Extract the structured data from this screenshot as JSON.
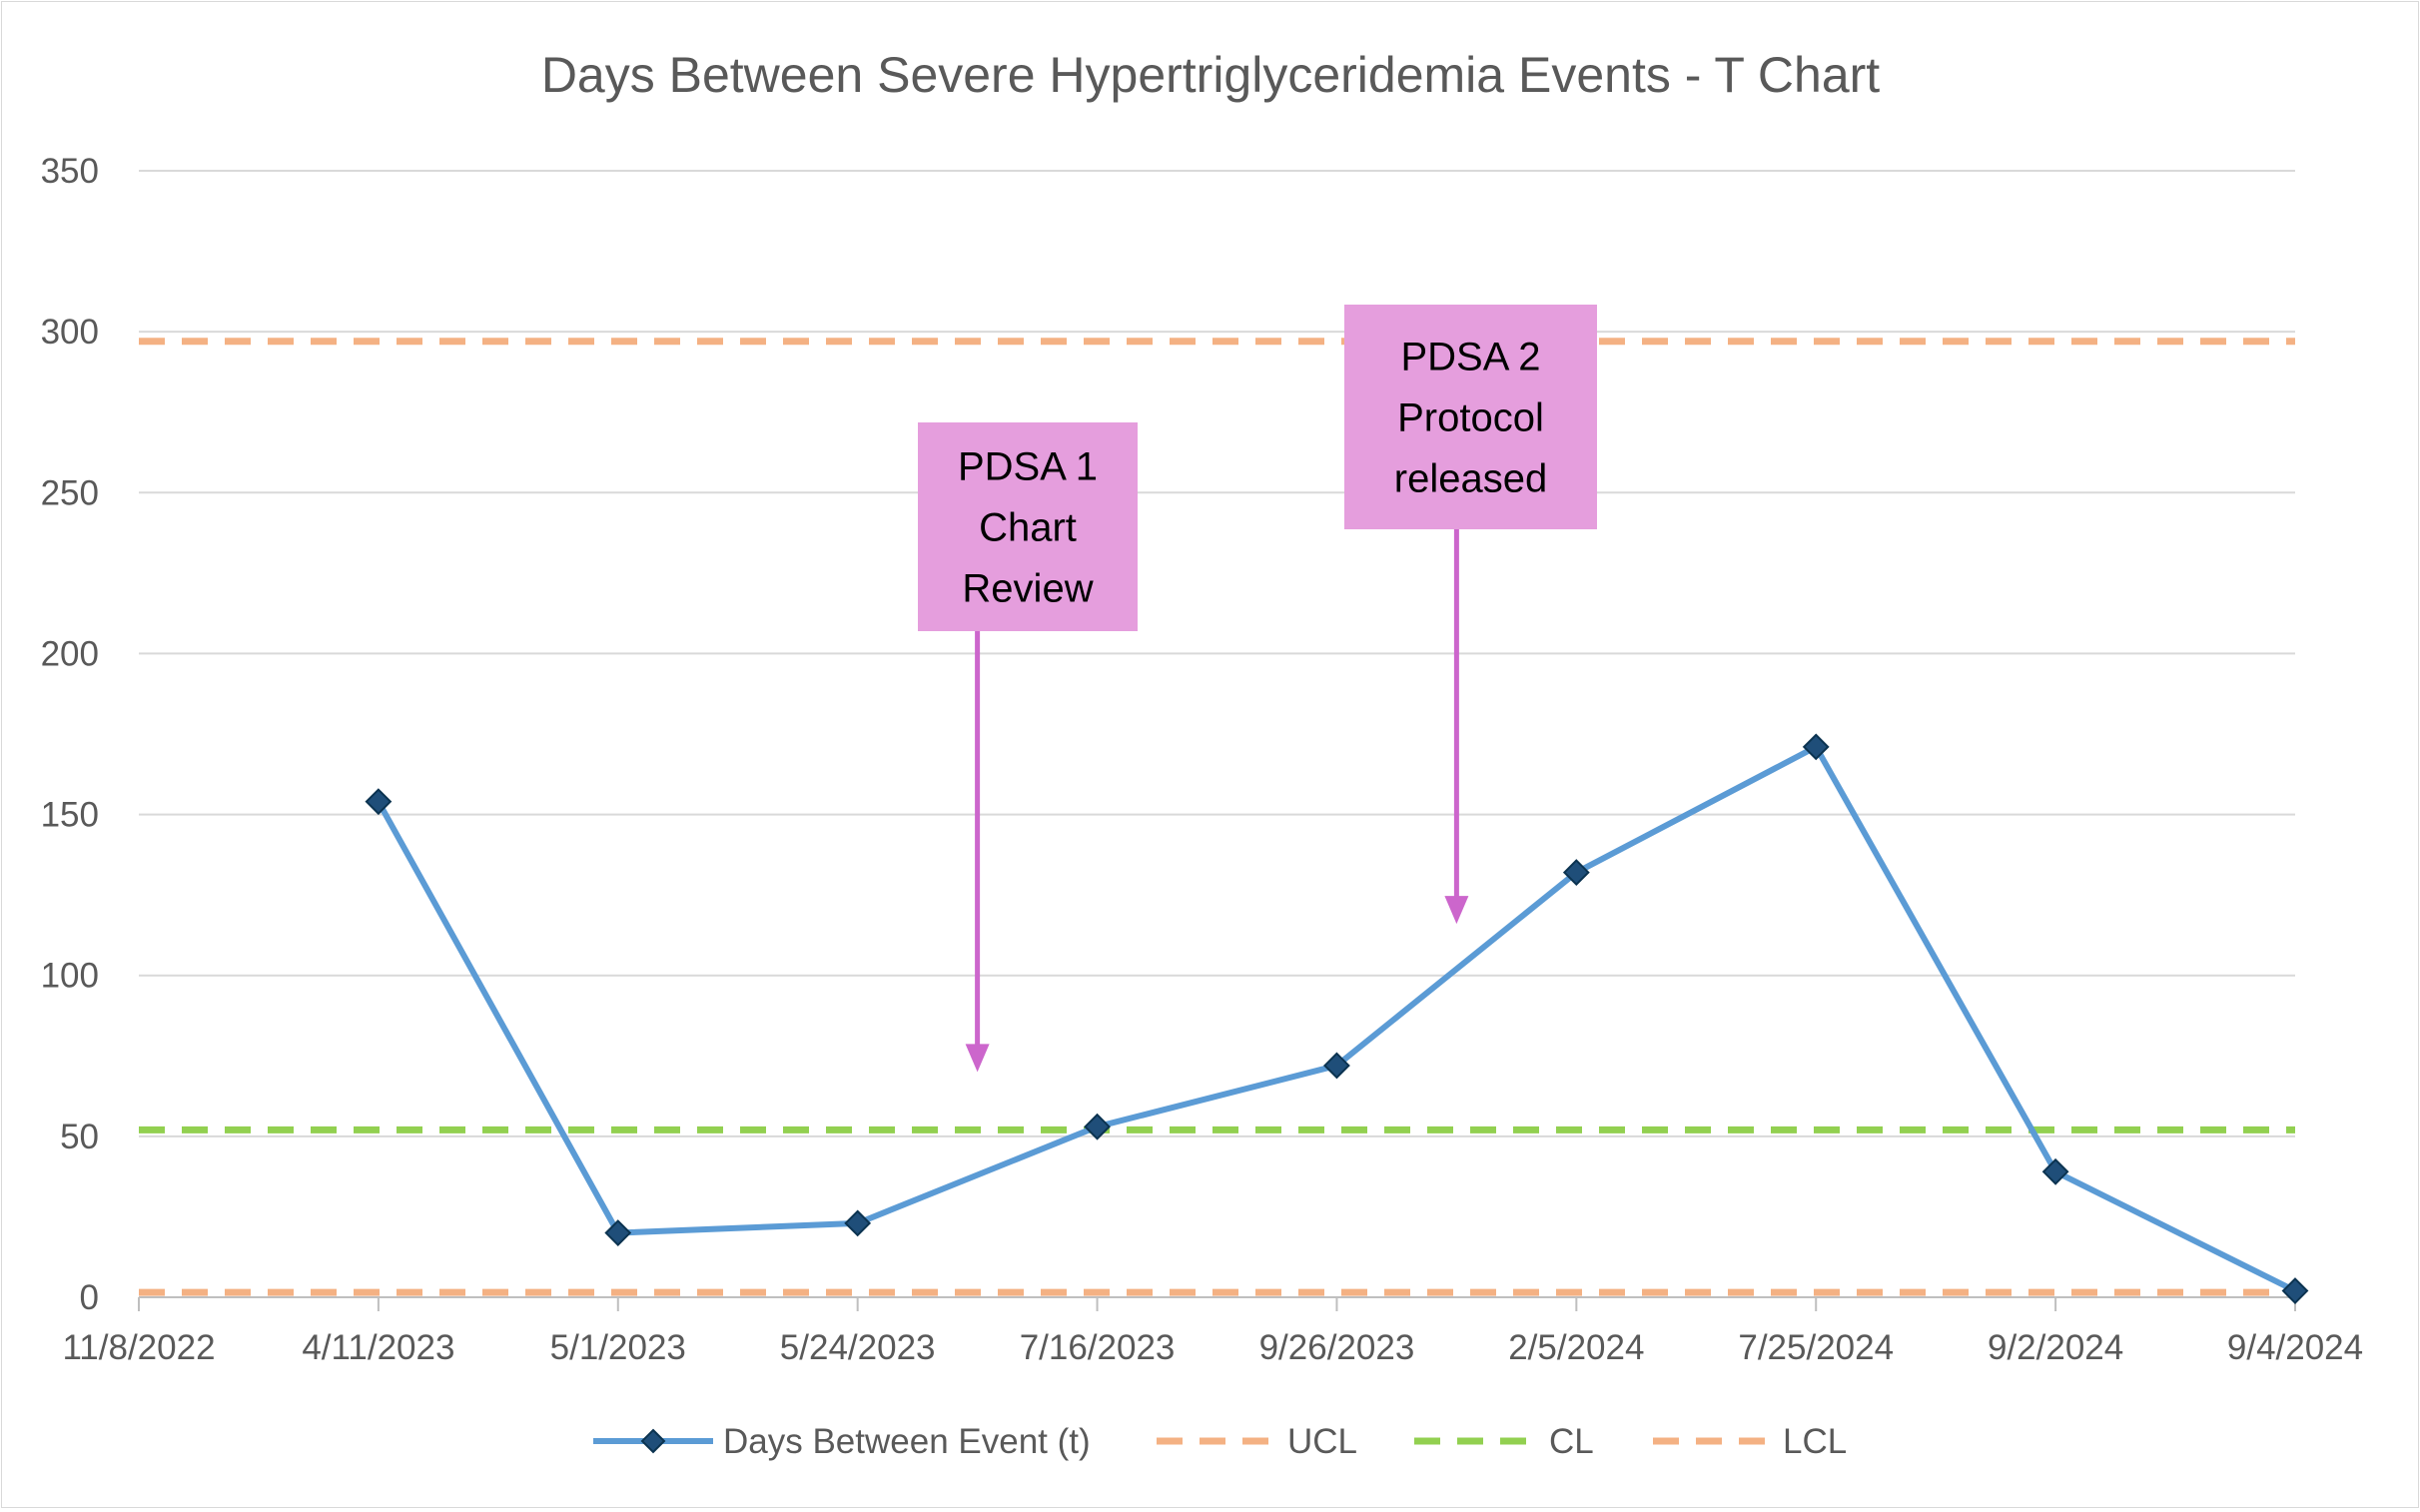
{
  "chart_data": {
    "type": "line",
    "title": "Days Between Severe Hypertriglyceridemia Events - T Chart",
    "xlabel": "",
    "ylabel": "",
    "categories": [
      "11/8/2022",
      "4/11/2023",
      "5/1/2023",
      "5/24/2023",
      "7/16/2023",
      "9/26/2023",
      "2/5/2024",
      "7/25/2024",
      "9/2/2024",
      "9/4/2024"
    ],
    "ylim": [
      0,
      350
    ],
    "yticks": [
      0,
      50,
      100,
      150,
      200,
      250,
      300,
      350
    ],
    "grid": true,
    "legend_position": "bottom",
    "series": [
      {
        "name": "Days Between Event (t)",
        "values": [
          null,
          154,
          20,
          23,
          53,
          72,
          132,
          171,
          39,
          2
        ],
        "color": "#5b9bd5",
        "marker": "diamond",
        "marker_color": "#1f4e79",
        "style": "solid"
      },
      {
        "name": "UCL",
        "values": [
          297,
          297,
          297,
          297,
          297,
          297,
          297,
          297,
          297,
          297
        ],
        "color": "#f4b183",
        "style": "dashed"
      },
      {
        "name": "CL",
        "values": [
          52,
          52,
          52,
          52,
          52,
          52,
          52,
          52,
          52,
          52
        ],
        "color": "#92d050",
        "style": "dashed"
      },
      {
        "name": "LCL",
        "values": [
          1.5,
          1.5,
          1.5,
          1.5,
          1.5,
          1.5,
          1.5,
          1.5,
          1.5,
          1.5
        ],
        "color": "#f4b183",
        "style": "dashed"
      }
    ],
    "annotations": [
      {
        "lines": [
          "PDSA 1",
          "Chart",
          "Review"
        ],
        "arrow_target": {
          "x_between": [
            "5/24/2023",
            "7/16/2023"
          ],
          "y": 70
        }
      },
      {
        "lines": [
          "PDSA 2",
          "Protocol",
          "released"
        ],
        "arrow_target": {
          "x_between": [
            "9/26/2023",
            "2/5/2024"
          ],
          "y": 116
        }
      }
    ]
  },
  "colors": {
    "grid": "#d9d9d9",
    "axis": "#bfbfbf",
    "annotation_fill": "#e59edd",
    "annotation_arrow": "#cc66cc"
  }
}
